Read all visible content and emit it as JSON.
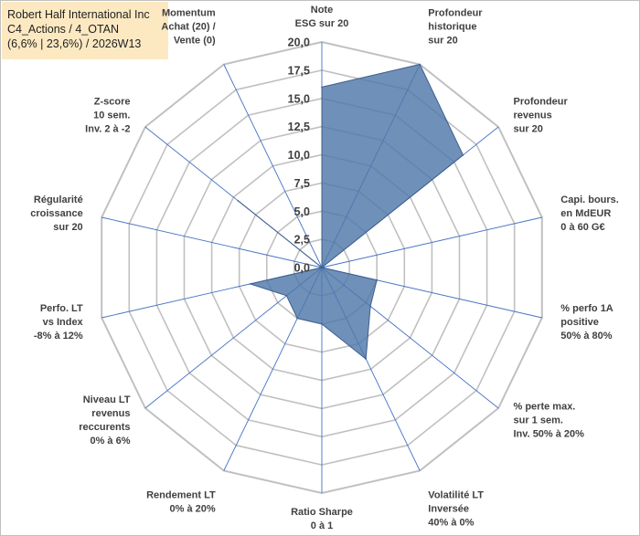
{
  "title": {
    "line1": "Robert Half International Inc",
    "line2": "C4_Actions / 4_OTAN",
    "line3": "(6,6% | 23,6%) / 2026W13"
  },
  "chart_data": {
    "type": "radar",
    "rmin": 0,
    "rmax": 20,
    "ticks": [
      "0,0",
      "2,5",
      "5,0",
      "7,5",
      "10,0",
      "12,5",
      "15,0",
      "17,5",
      "20,0"
    ],
    "axes": [
      [
        "Note",
        "ESG sur 20"
      ],
      [
        "Profondeur",
        "historique",
        "sur 20"
      ],
      [
        "Profondeur",
        "revenus",
        "sur 20"
      ],
      [
        "Capi. bours.",
        "en MdEUR",
        "0 à 60 G€"
      ],
      [
        "% perfo 1A",
        "positive",
        "50% à 80%"
      ],
      [
        "% perte max.",
        "sur 1 sem.",
        "Inv. 50% à 20%"
      ],
      [
        "Volatilité LT",
        "Inversée",
        "40% à 0%"
      ],
      [
        "Ratio Sharpe",
        "0 à 1"
      ],
      [
        "Rendement LT",
        "0% à 20%"
      ],
      [
        "Niveau LT",
        "revenus",
        "reccurents",
        "0% à 6%"
      ],
      [
        "Perfo. LT",
        "vs Index",
        "-8% à 12%"
      ],
      [
        "Régularité",
        "croissance",
        "sur 20"
      ],
      [
        "Z-score",
        "10 sem.",
        "Inv. 2 à -2"
      ],
      [
        "Momentum",
        "Achat (20) /",
        "Vente (0)"
      ]
    ],
    "series": [
      {
        "name": "Robert Half International Inc",
        "color": "#4f77aa",
        "values": [
          16.0,
          20.0,
          16.0,
          0.0,
          5.0,
          5.5,
          9.0,
          5.0,
          5.0,
          4.0,
          6.5,
          0.0,
          9.5,
          0.0
        ]
      }
    ],
    "grid": true,
    "grid_color": "#c0c0c0",
    "spoke_color": "#4472c4"
  }
}
